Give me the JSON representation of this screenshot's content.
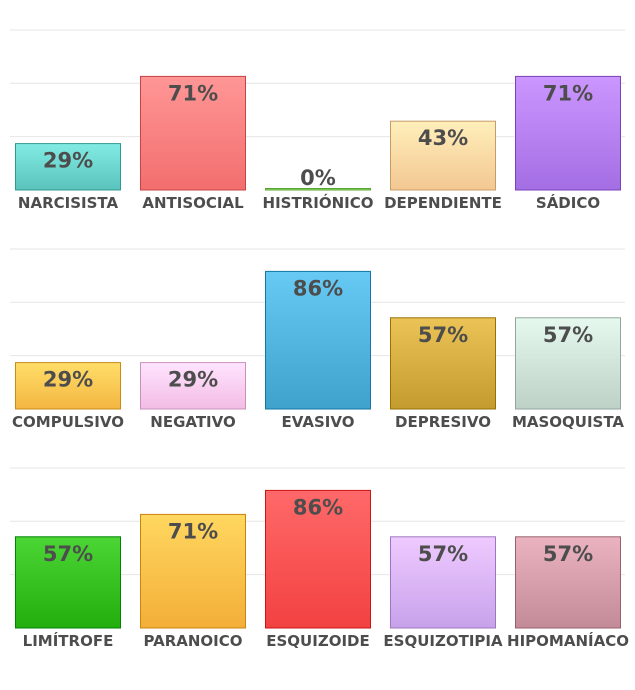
{
  "chart_data": [
    {
      "type": "bar",
      "title": "",
      "xlabel": "",
      "ylabel": "",
      "ylim": [
        0,
        100
      ],
      "grid": true,
      "categories": [
        "NARCISISTA",
        "ANTISOCIAL",
        "HISTRIÓNICO",
        "DEPENDIENTE",
        "SÁDICO"
      ],
      "values": [
        29,
        71,
        0,
        43,
        71
      ],
      "value_labels": [
        "29%",
        "71%",
        "0%",
        "43%",
        "71%"
      ],
      "colors": [
        "#66d0c8",
        "#ff7a7a",
        "#8fdc6a",
        "#ffd39e",
        "#b07af0"
      ]
    },
    {
      "type": "bar",
      "title": "",
      "xlabel": "",
      "ylabel": "",
      "ylim": [
        0,
        100
      ],
      "grid": true,
      "categories": [
        "COMPULSIVO",
        "NEGATIVO",
        "EVASIVO",
        "DEPRESIVO",
        "MASOQUISTA"
      ],
      "values": [
        29,
        29,
        86,
        57,
        57
      ],
      "value_labels": [
        "29%",
        "29%",
        "86%",
        "57%",
        "57%"
      ],
      "colors": [
        "#ffc24d",
        "#ffc8f0",
        "#4aaed8",
        "#cfa73a",
        "#c9ddd3"
      ]
    },
    {
      "type": "bar",
      "title": "",
      "xlabel": "",
      "ylabel": "",
      "ylim": [
        0,
        100
      ],
      "grid": true,
      "categories": [
        "LIMÍTROFE",
        "PARANOICO",
        "ESQUIZOIDE",
        "ESQUIZOTIPIA",
        "HIPOMANÍACO"
      ],
      "values": [
        57,
        71,
        86,
        57,
        57
      ],
      "value_labels": [
        "57%",
        "71%",
        "86%",
        "57%",
        "57%"
      ],
      "colors": [
        "#2fba1a",
        "#ffbb44",
        "#ff4d4d",
        "#d3aef7",
        "#cf97a4"
      ]
    }
  ]
}
